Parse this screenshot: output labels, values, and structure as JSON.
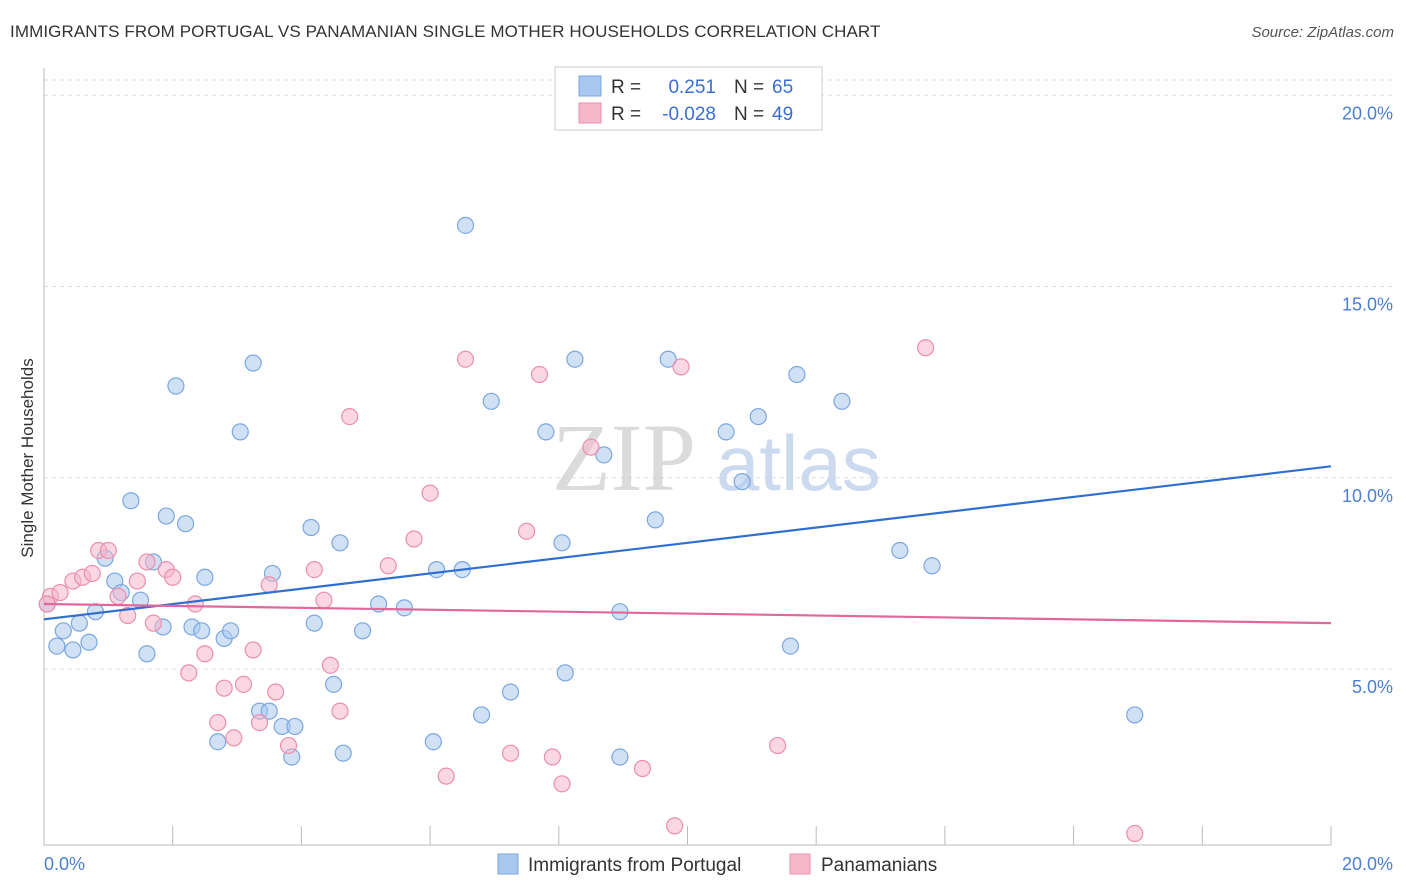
{
  "header": {
    "title": "IMMIGRANTS FROM PORTUGAL VS PANAMANIAN SINGLE MOTHER HOUSEHOLDS CORRELATION CHART",
    "source": "Source: ZipAtlas.com"
  },
  "watermark": {
    "part1": "ZIP",
    "part2": "atlas"
  },
  "legend": {
    "rows": [
      {
        "r_label": "R =",
        "r_value": "0.251",
        "n_label": "N =",
        "n_value": "65"
      },
      {
        "r_label": "R =",
        "r_value": "-0.028",
        "n_label": "N =",
        "n_value": "49"
      }
    ]
  },
  "bottom_legend": {
    "items": [
      {
        "label": "Immigrants from Portugal"
      },
      {
        "label": "Panamanians"
      }
    ]
  },
  "colors": {
    "blue_fill": "#a9c8ef",
    "blue_stroke": "#7aa7df",
    "blue_line": "#2f6fcf",
    "pink_fill": "#f6b7cb",
    "pink_stroke": "#eb8fad",
    "pink_line": "#e0689a",
    "grid": "#dddddd",
    "tick_text": "#4a7fcf"
  },
  "chart_data": {
    "type": "scatter",
    "title": "IMMIGRANTS FROM PORTUGAL VS PANAMANIAN SINGLE MOTHER HOUSEHOLDS CORRELATION CHART",
    "xlabel": "",
    "ylabel": "Single Mother Households",
    "xlim": [
      0,
      20
    ],
    "ylim": [
      0.4,
      20.4
    ],
    "x_tick_labels": [
      "0.0%",
      "20.0%"
    ],
    "y_ticks": [
      5,
      10,
      15,
      20
    ],
    "y_tick_labels": [
      "5.0%",
      "10.0%",
      "15.0%",
      "20.0%"
    ],
    "grid": true,
    "legend_position": "top-center",
    "series": [
      {
        "name": "Immigrants from Portugal",
        "r": 0.251,
        "n": 65,
        "trend": [
          [
            0,
            6.3
          ],
          [
            20,
            10.3
          ]
        ],
        "points": [
          [
            0.05,
            6.7
          ],
          [
            0.2,
            5.6
          ],
          [
            0.3,
            6.0
          ],
          [
            0.45,
            5.5
          ],
          [
            0.55,
            6.2
          ],
          [
            0.7,
            5.7
          ],
          [
            0.8,
            6.5
          ],
          [
            0.95,
            7.9
          ],
          [
            1.1,
            7.3
          ],
          [
            1.2,
            7.0
          ],
          [
            1.35,
            9.4
          ],
          [
            1.5,
            6.8
          ],
          [
            1.6,
            5.4
          ],
          [
            1.7,
            7.8
          ],
          [
            1.85,
            6.1
          ],
          [
            1.9,
            9.0
          ],
          [
            2.05,
            12.4
          ],
          [
            2.2,
            8.8
          ],
          [
            2.3,
            6.1
          ],
          [
            2.45,
            6.0
          ],
          [
            2.5,
            7.4
          ],
          [
            2.7,
            3.1
          ],
          [
            2.8,
            5.8
          ],
          [
            2.9,
            6.0
          ],
          [
            3.05,
            11.2
          ],
          [
            3.25,
            13.0
          ],
          [
            3.35,
            3.9
          ],
          [
            3.5,
            3.9
          ],
          [
            3.55,
            7.5
          ],
          [
            3.7,
            3.5
          ],
          [
            3.85,
            2.7
          ],
          [
            3.9,
            3.5
          ],
          [
            4.15,
            8.7
          ],
          [
            4.2,
            6.2
          ],
          [
            4.5,
            4.6
          ],
          [
            4.6,
            8.3
          ],
          [
            4.65,
            2.8
          ],
          [
            4.95,
            6.0
          ],
          [
            5.2,
            6.7
          ],
          [
            5.6,
            6.6
          ],
          [
            6.05,
            3.1
          ],
          [
            6.1,
            7.6
          ],
          [
            6.5,
            7.6
          ],
          [
            6.55,
            16.6
          ],
          [
            6.8,
            3.8
          ],
          [
            6.95,
            12.0
          ],
          [
            7.25,
            4.4
          ],
          [
            7.8,
            11.2
          ],
          [
            8.05,
            8.3
          ],
          [
            8.1,
            4.9
          ],
          [
            8.25,
            13.1
          ],
          [
            8.7,
            10.6
          ],
          [
            8.95,
            2.7
          ],
          [
            8.95,
            6.5
          ],
          [
            9.5,
            8.9
          ],
          [
            9.7,
            13.1
          ],
          [
            10.6,
            11.2
          ],
          [
            10.85,
            9.9
          ],
          [
            11.1,
            11.6
          ],
          [
            11.6,
            5.6
          ],
          [
            11.7,
            12.7
          ],
          [
            12.4,
            12.0
          ],
          [
            13.3,
            8.1
          ],
          [
            13.8,
            7.7
          ],
          [
            16.95,
            3.8
          ]
        ]
      },
      {
        "name": "Panamanians",
        "r": -0.028,
        "n": 49,
        "trend": [
          [
            0,
            6.7
          ],
          [
            20,
            6.2
          ]
        ],
        "points": [
          [
            0.1,
            6.9
          ],
          [
            0.25,
            7.0
          ],
          [
            0.45,
            7.3
          ],
          [
            0.6,
            7.4
          ],
          [
            0.75,
            7.5
          ],
          [
            0.85,
            8.1
          ],
          [
            1.0,
            8.1
          ],
          [
            1.15,
            6.9
          ],
          [
            1.3,
            6.4
          ],
          [
            1.45,
            7.3
          ],
          [
            1.6,
            7.8
          ],
          [
            1.7,
            6.2
          ],
          [
            1.9,
            7.6
          ],
          [
            2.0,
            7.4
          ],
          [
            2.25,
            4.9
          ],
          [
            2.35,
            6.7
          ],
          [
            2.5,
            5.4
          ],
          [
            2.7,
            3.6
          ],
          [
            2.8,
            4.5
          ],
          [
            2.95,
            3.2
          ],
          [
            3.1,
            4.6
          ],
          [
            3.25,
            5.5
          ],
          [
            3.35,
            3.6
          ],
          [
            3.5,
            7.2
          ],
          [
            3.6,
            4.4
          ],
          [
            3.8,
            3.0
          ],
          [
            4.2,
            7.6
          ],
          [
            4.35,
            6.8
          ],
          [
            4.45,
            5.1
          ],
          [
            4.6,
            3.9
          ],
          [
            4.75,
            11.6
          ],
          [
            5.35,
            7.7
          ],
          [
            5.75,
            8.4
          ],
          [
            6.0,
            9.6
          ],
          [
            6.25,
            2.2
          ],
          [
            6.55,
            13.1
          ],
          [
            7.25,
            2.8
          ],
          [
            7.5,
            8.6
          ],
          [
            7.7,
            12.7
          ],
          [
            7.9,
            2.7
          ],
          [
            8.05,
            2.0
          ],
          [
            8.5,
            10.8
          ],
          [
            9.3,
            2.4
          ],
          [
            9.8,
            0.9
          ],
          [
            9.9,
            12.9
          ],
          [
            11.4,
            3.0
          ],
          [
            13.7,
            13.4
          ],
          [
            16.95,
            0.7
          ],
          [
            0.05,
            6.7
          ]
        ]
      }
    ]
  }
}
